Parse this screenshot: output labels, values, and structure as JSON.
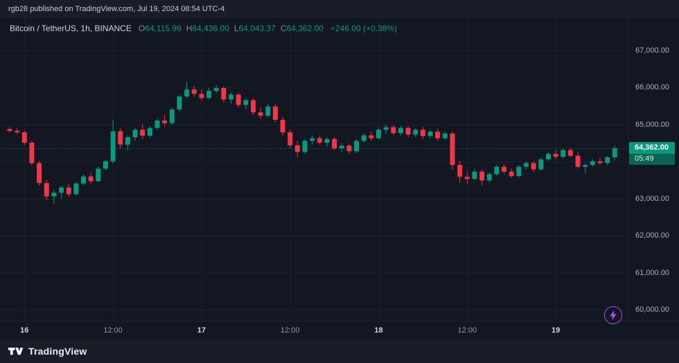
{
  "meta": {
    "top_bar_text": "rgb28 published on TradingView.com, Jul 19, 2024 08:54 UTC-4"
  },
  "header": {
    "symbol": "Bitcoin / TetherUS, 1h, BINANCE",
    "ohlc": [
      {
        "label": "O",
        "value": "64,115.99"
      },
      {
        "label": "H",
        "value": "64,436.00"
      },
      {
        "label": "L",
        "value": "64,043.37"
      },
      {
        "label": "C",
        "value": "64,362.00"
      }
    ],
    "change": "+246.00 (+0.38%)"
  },
  "colors": {
    "up": "#089981",
    "down": "#f23645",
    "background": "#131722",
    "grid": "#1e222d",
    "axis_text": "#aeb1bb",
    "accent_purple": "#b24bf3",
    "price_line": "#089981"
  },
  "price_axis": {
    "labels": [
      {
        "text": "67,000.00",
        "price": 67000
      },
      {
        "text": "66,000.00",
        "price": 66000
      },
      {
        "text": "65,000.00",
        "price": 65000
      },
      {
        "text": "63,000.00",
        "price": 63000
      },
      {
        "text": "62,000.00",
        "price": 62000
      },
      {
        "text": "61,000.00",
        "price": 61000
      },
      {
        "text": "60,000.00",
        "price": 60000
      }
    ],
    "badge": {
      "price_text": "64,362.00",
      "countdown": "05:49",
      "price": 64362
    }
  },
  "time_axis": {
    "labels": [
      {
        "text": "16",
        "i": 2,
        "major": true
      },
      {
        "text": "12:00",
        "i": 14,
        "major": false
      },
      {
        "text": "17",
        "i": 26,
        "major": true
      },
      {
        "text": "12:00",
        "i": 38,
        "major": false
      },
      {
        "text": "18",
        "i": 50,
        "major": true
      },
      {
        "text": "12:00",
        "i": 62,
        "major": false
      },
      {
        "text": "19",
        "i": 74,
        "major": true
      }
    ]
  },
  "footer": {
    "brand": "TradingView"
  },
  "chart_data": {
    "type": "candlestick",
    "title": "Bitcoin / TetherUS, 1h, BINANCE",
    "symbol": "Bitcoin / TetherUS",
    "exchange": "BINANCE",
    "interval": "1h",
    "ylim": [
      59800,
      67400
    ],
    "y_ticks": [
      60000,
      61000,
      62000,
      63000,
      64000,
      65000,
      66000,
      67000
    ],
    "x_ticks": [
      "16",
      "12:00",
      "17",
      "12:00",
      "18",
      "12:00",
      "19"
    ],
    "current_price": 64362,
    "last_ohlc": {
      "open": 64115.99,
      "high": 64436.0,
      "low": 64043.37,
      "close": 64362.0
    },
    "columns": [
      "time",
      "open",
      "high",
      "low",
      "close"
    ],
    "candles": [
      [
        "07-15 22:00",
        64880,
        64940,
        64780,
        64830
      ],
      [
        "07-15 23:00",
        64830,
        64900,
        64750,
        64790
      ],
      [
        "07-16 00:00",
        64790,
        64830,
        64450,
        64510
      ],
      [
        "07-16 01:00",
        64510,
        64560,
        63900,
        63960
      ],
      [
        "07-16 02:00",
        63960,
        64010,
        63350,
        63420
      ],
      [
        "07-16 03:00",
        63420,
        63500,
        62950,
        63060
      ],
      [
        "07-16 04:00",
        63060,
        63220,
        62850,
        63160
      ],
      [
        "07-16 05:00",
        63160,
        63350,
        63000,
        63300
      ],
      [
        "07-16 06:00",
        63300,
        63400,
        63050,
        63120
      ],
      [
        "07-16 07:00",
        63120,
        63460,
        63080,
        63410
      ],
      [
        "07-16 08:00",
        63410,
        63660,
        63360,
        63600
      ],
      [
        "07-16 09:00",
        63600,
        63700,
        63400,
        63470
      ],
      [
        "07-16 10:00",
        63470,
        63860,
        63440,
        63810
      ],
      [
        "07-16 11:00",
        63810,
        64060,
        63760,
        64010
      ],
      [
        "07-16 12:00",
        64010,
        65120,
        63950,
        64820
      ],
      [
        "07-16 13:00",
        64820,
        64900,
        64350,
        64460
      ],
      [
        "07-16 14:00",
        64460,
        64710,
        64310,
        64660
      ],
      [
        "07-16 15:00",
        64660,
        64910,
        64560,
        64860
      ],
      [
        "07-16 16:00",
        64860,
        65010,
        64610,
        64700
      ],
      [
        "07-16 17:00",
        64700,
        64960,
        64650,
        64910
      ],
      [
        "07-16 18:00",
        64910,
        65160,
        64860,
        65110
      ],
      [
        "07-16 19:00",
        65110,
        65260,
        64950,
        65040
      ],
      [
        "07-16 20:00",
        65040,
        65460,
        65000,
        65410
      ],
      [
        "07-16 21:00",
        65410,
        65810,
        65360,
        65760
      ],
      [
        "07-16 22:00",
        65760,
        66160,
        65710,
        65950
      ],
      [
        "07-16 23:00",
        65950,
        66060,
        65750,
        65830
      ],
      [
        "07-17 00:00",
        65830,
        65950,
        65650,
        65720
      ],
      [
        "07-17 01:00",
        65720,
        65990,
        65680,
        65910
      ],
      [
        "07-17 02:00",
        65910,
        66060,
        65850,
        65990
      ],
      [
        "07-17 03:00",
        65990,
        66030,
        65600,
        65680
      ],
      [
        "07-17 04:00",
        65680,
        65860,
        65560,
        65810
      ],
      [
        "07-17 05:00",
        65810,
        65860,
        65460,
        65530
      ],
      [
        "07-17 06:00",
        65530,
        65710,
        65410,
        65660
      ],
      [
        "07-17 07:00",
        65660,
        65710,
        65260,
        65330
      ],
      [
        "07-17 08:00",
        65330,
        65460,
        65160,
        65240
      ],
      [
        "07-17 09:00",
        65240,
        65560,
        65190,
        65490
      ],
      [
        "07-17 10:00",
        65490,
        65560,
        65060,
        65130
      ],
      [
        "07-17 11:00",
        65130,
        65210,
        64710,
        64790
      ],
      [
        "07-17 12:00",
        64790,
        64860,
        64360,
        64440
      ],
      [
        "07-17 13:00",
        64440,
        64560,
        64110,
        64260
      ],
      [
        "07-17 14:00",
        64260,
        64610,
        64210,
        64560
      ],
      [
        "07-17 15:00",
        64560,
        64710,
        64460,
        64630
      ],
      [
        "07-17 16:00",
        64630,
        64690,
        64460,
        64510
      ],
      [
        "07-17 17:00",
        64510,
        64660,
        64410,
        64610
      ],
      [
        "07-17 18:00",
        64610,
        64660,
        64310,
        64360
      ],
      [
        "07-17 19:00",
        64360,
        64510,
        64260,
        64430
      ],
      [
        "07-17 20:00",
        64430,
        64490,
        64210,
        64280
      ],
      [
        "07-17 21:00",
        64280,
        64610,
        64230,
        64560
      ],
      [
        "07-17 22:00",
        64560,
        64760,
        64510,
        64710
      ],
      [
        "07-17 23:00",
        64710,
        64810,
        64560,
        64630
      ],
      [
        "07-18 00:00",
        64630,
        64910,
        64610,
        64860
      ],
      [
        "07-18 01:00",
        64860,
        64990,
        64760,
        64930
      ],
      [
        "07-18 02:00",
        64930,
        64990,
        64710,
        64770
      ],
      [
        "07-18 03:00",
        64770,
        64960,
        64710,
        64910
      ],
      [
        "07-18 04:00",
        64910,
        64960,
        64660,
        64730
      ],
      [
        "07-18 05:00",
        64730,
        64910,
        64660,
        64860
      ],
      [
        "07-18 06:00",
        64860,
        64930,
        64610,
        64690
      ],
      [
        "07-18 07:00",
        64690,
        64860,
        64630,
        64810
      ],
      [
        "07-18 08:00",
        64810,
        64890,
        64560,
        64630
      ],
      [
        "07-18 09:00",
        64630,
        64810,
        64590,
        64760
      ],
      [
        "07-18 10:00",
        64760,
        64820,
        63780,
        63910
      ],
      [
        "07-18 11:00",
        63910,
        64010,
        63430,
        63590
      ],
      [
        "07-18 12:00",
        63590,
        63730,
        63390,
        63530
      ],
      [
        "07-18 13:00",
        63530,
        63810,
        63510,
        63730
      ],
      [
        "07-18 14:00",
        63730,
        63790,
        63360,
        63490
      ],
      [
        "07-18 15:00",
        63490,
        63710,
        63430,
        63660
      ],
      [
        "07-18 16:00",
        63660,
        63910,
        63610,
        63860
      ],
      [
        "07-18 17:00",
        63860,
        63930,
        63660,
        63730
      ],
      [
        "07-18 18:00",
        63730,
        63810,
        63560,
        63610
      ],
      [
        "07-18 19:00",
        63610,
        63910,
        63570,
        63860
      ],
      [
        "07-18 20:00",
        63860,
        64010,
        63790,
        63960
      ],
      [
        "07-18 21:00",
        63960,
        64010,
        63710,
        63790
      ],
      [
        "07-18 22:00",
        63790,
        64110,
        63760,
        64060
      ],
      [
        "07-18 23:00",
        64060,
        64260,
        64010,
        64210
      ],
      [
        "07-19 00:00",
        64210,
        64310,
        64060,
        64130
      ],
      [
        "07-19 01:00",
        64130,
        64360,
        64090,
        64310
      ],
      [
        "07-19 02:00",
        64310,
        64360,
        64110,
        64160
      ],
      [
        "07-19 03:00",
        64160,
        64260,
        63810,
        63860
      ],
      [
        "07-19 04:00",
        63860,
        63960,
        63690,
        63910
      ],
      [
        "07-19 05:00",
        63910,
        64060,
        63860,
        64010
      ],
      [
        "07-19 06:00",
        64010,
        64110,
        63910,
        63960
      ],
      [
        "07-19 07:00",
        63960,
        64160,
        63910,
        64116
      ],
      [
        "07-19 08:00",
        64115.99,
        64436.0,
        64043.37,
        64362.0
      ]
    ]
  }
}
